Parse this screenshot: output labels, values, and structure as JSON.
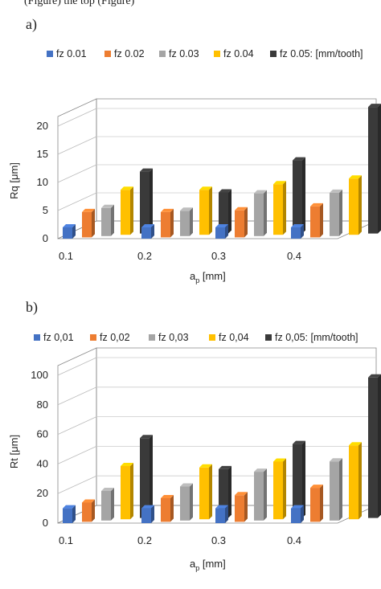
{
  "top_text": "(Figure) the top (Figure)",
  "chart_data": [
    {
      "panel_label": "a)",
      "type": "bar",
      "categories": [
        "0.1",
        "0.2",
        "0.3",
        "0.4"
      ],
      "series": [
        {
          "name": "fz 0.01",
          "values": [
            2,
            2,
            2,
            2
          ],
          "color": "#4472C4"
        },
        {
          "name": "fz 0.02",
          "values": [
            4.5,
            4.5,
            4.8,
            5.5
          ],
          "color": "#ED7D31"
        },
        {
          "name": "fz 0.03",
          "values": [
            5,
            4.5,
            7.6,
            7.7
          ],
          "color": "#A5A5A5"
        },
        {
          "name": "fz 0.04",
          "values": [
            8,
            8,
            9,
            10
          ],
          "color": "#FFC000"
        },
        {
          "name": "fz 0.05: [mm/tooth]",
          "values": [
            11,
            7.3,
            13,
            22.5
          ],
          "color": "#3A3A3A"
        }
      ],
      "yticks": [
        "0",
        "5",
        "10",
        "15",
        "20"
      ],
      "ylim": [
        0,
        20
      ],
      "ylabel": "Rq [μm]",
      "xlabel_main": "a",
      "xlabel_sub": "p",
      "xlabel_unit": " [mm]",
      "legend": "top",
      "grid": true
    },
    {
      "panel_label": "b)",
      "type": "bar",
      "categories": [
        "0.1",
        "0.2",
        "0.3",
        "0.4"
      ],
      "series": [
        {
          "name": "fz 0,01",
          "values": [
            10,
            10,
            10,
            10
          ],
          "color": "#4472C4"
        },
        {
          "name": "fz 0,02",
          "values": [
            13,
            16,
            18,
            23
          ],
          "color": "#ED7D31"
        },
        {
          "name": "fz 0,03",
          "values": [
            20,
            23,
            33,
            40
          ],
          "color": "#A5A5A5"
        },
        {
          "name": "fz 0,04",
          "values": [
            36,
            35,
            39,
            50
          ],
          "color": "#FFC000"
        },
        {
          "name": "fz 0,05: [mm/tooth]",
          "values": [
            54,
            33,
            50,
            95
          ],
          "color": "#3A3A3A"
        }
      ],
      "yticks": [
        "0",
        "20",
        "40",
        "60",
        "80",
        "100"
      ],
      "ylim": [
        0,
        100
      ],
      "ylabel": "Rt [μm]",
      "xlabel_main": "a",
      "xlabel_sub": "p",
      "xlabel_unit": " [mm]",
      "legend": "top",
      "grid": true
    }
  ]
}
